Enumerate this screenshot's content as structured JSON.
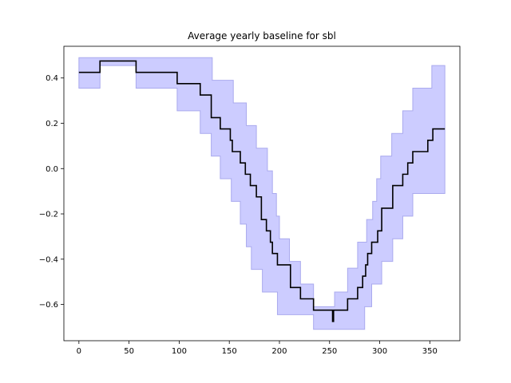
{
  "chart_data": {
    "type": "line",
    "title": "Average yearly baseline for sbl",
    "xlabel": "",
    "ylabel": "",
    "xlim": [
      -15,
      380
    ],
    "ylim": [
      -0.76,
      0.54
    ],
    "xticks": [
      0,
      50,
      100,
      150,
      200,
      250,
      300,
      350
    ],
    "yticks": [
      0.4,
      0.2,
      0.0,
      -0.2,
      -0.4,
      -0.6
    ],
    "ytick_labels": [
      "0.4",
      "0.2",
      "0.0",
      "−0.2",
      "−0.4",
      "−0.6"
    ],
    "grid": false,
    "colors": {
      "line": "#000000",
      "band_fill": "#ccccff",
      "band_edge": "#aaaaee"
    },
    "series": [
      {
        "role": "mean",
        "points": [
          [
            0,
            0.425
          ],
          [
            21,
            0.425
          ],
          [
            21,
            0.475
          ],
          [
            57,
            0.475
          ],
          [
            57,
            0.425
          ],
          [
            98,
            0.425
          ],
          [
            98,
            0.375
          ],
          [
            121,
            0.375
          ],
          [
            121,
            0.325
          ],
          [
            132,
            0.325
          ],
          [
            132,
            0.225
          ],
          [
            141,
            0.225
          ],
          [
            141,
            0.175
          ],
          [
            151,
            0.175
          ],
          [
            151,
            0.125
          ],
          [
            153,
            0.125
          ],
          [
            153,
            0.075
          ],
          [
            161,
            0.075
          ],
          [
            161,
            0.025
          ],
          [
            166,
            0.025
          ],
          [
            166,
            -0.025
          ],
          [
            171,
            -0.025
          ],
          [
            171,
            -0.075
          ],
          [
            177,
            -0.075
          ],
          [
            177,
            -0.125
          ],
          [
            182,
            -0.125
          ],
          [
            182,
            -0.225
          ],
          [
            187,
            -0.225
          ],
          [
            187,
            -0.275
          ],
          [
            191,
            -0.275
          ],
          [
            191,
            -0.325
          ],
          [
            193,
            -0.325
          ],
          [
            193,
            -0.375
          ],
          [
            198,
            -0.375
          ],
          [
            198,
            -0.425
          ],
          [
            211,
            -0.425
          ],
          [
            211,
            -0.525
          ],
          [
            221,
            -0.525
          ],
          [
            221,
            -0.575
          ],
          [
            234,
            -0.575
          ],
          [
            234,
            -0.625
          ],
          [
            253,
            -0.625
          ],
          [
            253,
            -0.675
          ],
          [
            254,
            -0.675
          ],
          [
            254,
            -0.625
          ],
          [
            268,
            -0.625
          ],
          [
            268,
            -0.575
          ],
          [
            278,
            -0.575
          ],
          [
            278,
            -0.525
          ],
          [
            283,
            -0.525
          ],
          [
            283,
            -0.475
          ],
          [
            286,
            -0.475
          ],
          [
            286,
            -0.425
          ],
          [
            288,
            -0.425
          ],
          [
            288,
            -0.375
          ],
          [
            292,
            -0.375
          ],
          [
            292,
            -0.325
          ],
          [
            298,
            -0.325
          ],
          [
            298,
            -0.275
          ],
          [
            302,
            -0.275
          ],
          [
            302,
            -0.175
          ],
          [
            313,
            -0.175
          ],
          [
            313,
            -0.075
          ],
          [
            323,
            -0.075
          ],
          [
            323,
            -0.025
          ],
          [
            328,
            -0.025
          ],
          [
            328,
            0.025
          ],
          [
            333,
            0.025
          ],
          [
            333,
            0.075
          ],
          [
            348,
            0.075
          ],
          [
            348,
            0.125
          ],
          [
            353,
            0.125
          ],
          [
            353,
            0.175
          ],
          [
            365,
            0.175
          ]
        ]
      },
      {
        "role": "upper",
        "points": [
          [
            0,
            0.49
          ],
          [
            133,
            0.49
          ],
          [
            133,
            0.39
          ],
          [
            154,
            0.39
          ],
          [
            154,
            0.29
          ],
          [
            167,
            0.29
          ],
          [
            167,
            0.19
          ],
          [
            177,
            0.19
          ],
          [
            177,
            0.09
          ],
          [
            188,
            0.09
          ],
          [
            188,
            -0.01
          ],
          [
            193,
            -0.01
          ],
          [
            193,
            -0.11
          ],
          [
            197,
            -0.11
          ],
          [
            197,
            -0.21
          ],
          [
            200,
            -0.21
          ],
          [
            200,
            -0.31
          ],
          [
            210,
            -0.31
          ],
          [
            210,
            -0.41
          ],
          [
            221,
            -0.41
          ],
          [
            221,
            -0.51
          ],
          [
            234,
            -0.51
          ],
          [
            234,
            -0.61
          ],
          [
            255,
            -0.61
          ],
          [
            255,
            -0.545
          ],
          [
            268,
            -0.545
          ],
          [
            268,
            -0.44
          ],
          [
            278,
            -0.44
          ],
          [
            278,
            -0.325
          ],
          [
            287,
            -0.325
          ],
          [
            287,
            -0.225
          ],
          [
            293,
            -0.225
          ],
          [
            293,
            -0.145
          ],
          [
            297,
            -0.145
          ],
          [
            297,
            -0.045
          ],
          [
            301,
            -0.045
          ],
          [
            301,
            0.055
          ],
          [
            312,
            0.055
          ],
          [
            312,
            0.155
          ],
          [
            323,
            0.155
          ],
          [
            323,
            0.255
          ],
          [
            333,
            0.255
          ],
          [
            333,
            0.355
          ],
          [
            352,
            0.355
          ],
          [
            352,
            0.455
          ],
          [
            365,
            0.455
          ]
        ]
      },
      {
        "role": "lower",
        "points": [
          [
            0,
            0.355
          ],
          [
            21,
            0.355
          ],
          [
            21,
            0.455
          ],
          [
            57,
            0.455
          ],
          [
            57,
            0.355
          ],
          [
            98,
            0.355
          ],
          [
            98,
            0.255
          ],
          [
            121,
            0.255
          ],
          [
            121,
            0.155
          ],
          [
            132,
            0.155
          ],
          [
            132,
            0.055
          ],
          [
            141,
            0.055
          ],
          [
            141,
            -0.045
          ],
          [
            152,
            -0.045
          ],
          [
            152,
            -0.145
          ],
          [
            161,
            -0.145
          ],
          [
            161,
            -0.245
          ],
          [
            167,
            -0.245
          ],
          [
            167,
            -0.345
          ],
          [
            172,
            -0.345
          ],
          [
            172,
            -0.445
          ],
          [
            183,
            -0.445
          ],
          [
            183,
            -0.545
          ],
          [
            198,
            -0.545
          ],
          [
            198,
            -0.645
          ],
          [
            234,
            -0.645
          ],
          [
            234,
            -0.71
          ],
          [
            285,
            -0.71
          ],
          [
            285,
            -0.61
          ],
          [
            292,
            -0.61
          ],
          [
            292,
            -0.51
          ],
          [
            302,
            -0.51
          ],
          [
            302,
            -0.41
          ],
          [
            313,
            -0.41
          ],
          [
            313,
            -0.31
          ],
          [
            323,
            -0.31
          ],
          [
            323,
            -0.21
          ],
          [
            333,
            -0.21
          ],
          [
            333,
            -0.11
          ],
          [
            353,
            -0.11
          ],
          [
            353,
            -0.11
          ],
          [
            365,
            -0.11
          ]
        ]
      }
    ]
  }
}
